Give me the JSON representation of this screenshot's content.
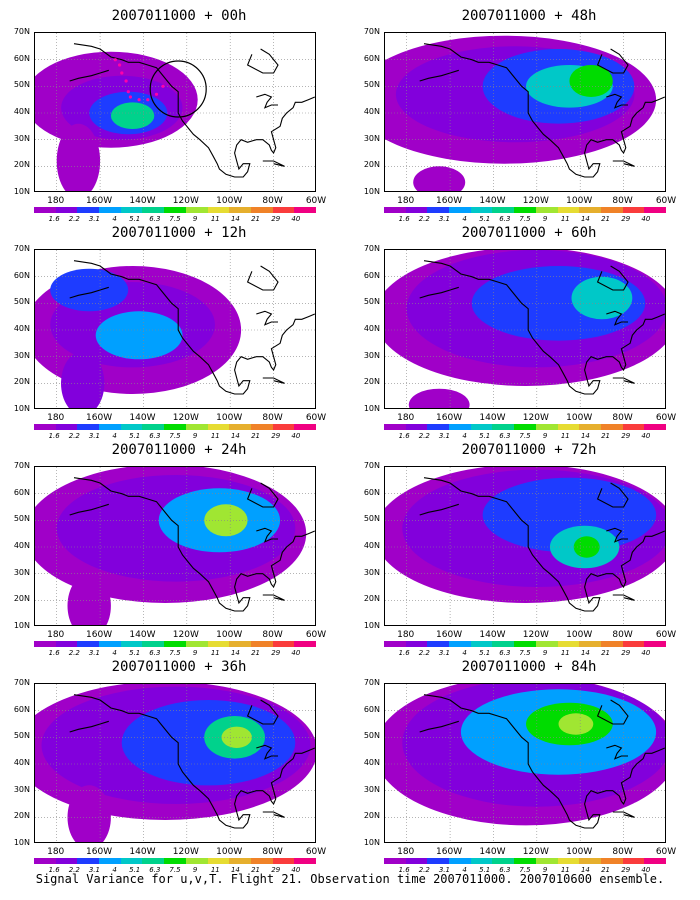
{
  "panels": [
    {
      "title": "2007011000 + 00h",
      "lead": "00h"
    },
    {
      "title": "2007011000 + 48h",
      "lead": "48h"
    },
    {
      "title": "2007011000 + 12h",
      "lead": "12h"
    },
    {
      "title": "2007011000 + 60h",
      "lead": "60h"
    },
    {
      "title": "2007011000 + 24h",
      "lead": "24h"
    },
    {
      "title": "2007011000 + 72h",
      "lead": "72h"
    },
    {
      "title": "2007011000 + 36h",
      "lead": "36h"
    },
    {
      "title": "2007011000 + 84h",
      "lead": "84h"
    }
  ],
  "axes": {
    "lat_labels": [
      "70N",
      "60N",
      "50N",
      "40N",
      "30N",
      "20N",
      "10N"
    ],
    "lon_labels": [
      "180",
      "160W",
      "140W",
      "120W",
      "100W",
      "80W",
      "60W"
    ]
  },
  "colorbar": {
    "labels": [
      "1.6",
      "2.2",
      "3.1",
      "4",
      "5.1",
      "6.3",
      "7.5",
      "9",
      "11",
      "14",
      "21",
      "29",
      "40"
    ],
    "colors": [
      "#a000c8",
      "#8200dc",
      "#1e3cff",
      "#00a0ff",
      "#00c8c8",
      "#00d28c",
      "#00dc00",
      "#a0e632",
      "#e6dc32",
      "#e6af2d",
      "#f08228",
      "#fa3c3c",
      "#f00082"
    ]
  },
  "caption": "Signal Variance for u,v,T. Flight 21. Observation time 2007011000. 2007010600 ensemble."
}
